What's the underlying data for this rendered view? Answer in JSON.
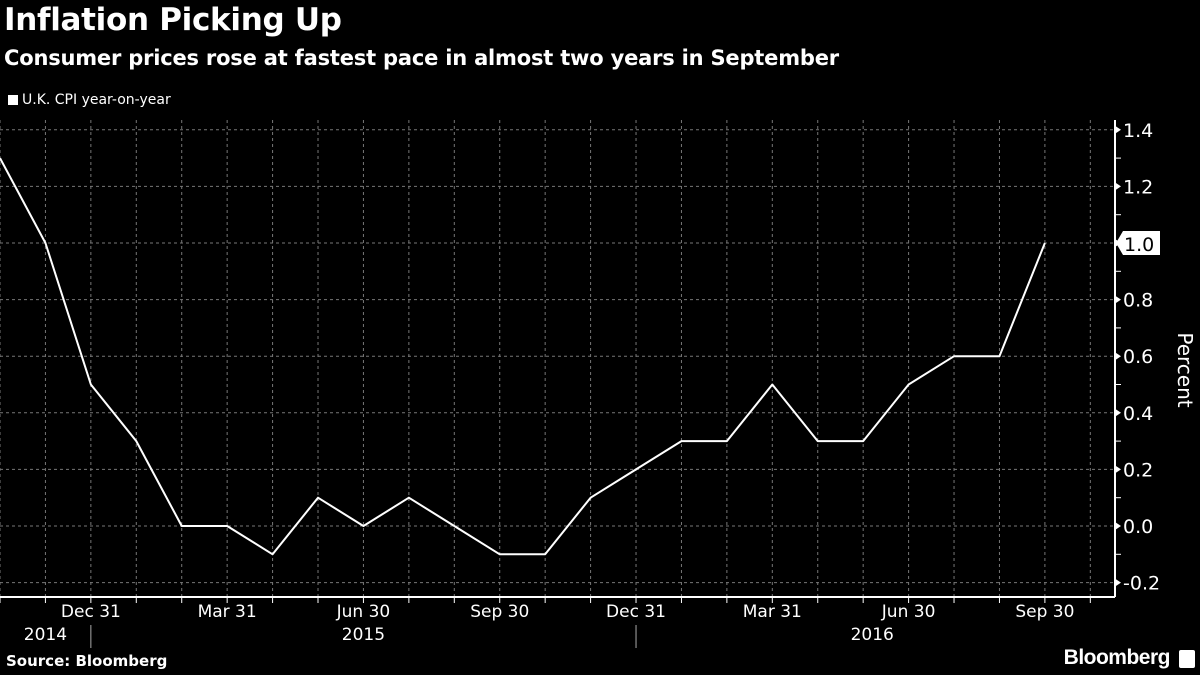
{
  "chart_data": {
    "type": "line",
    "title": "Inflation Picking Up",
    "subtitle": "Consumer prices rose at fastest pace in almost two years in September",
    "xlabel": "",
    "ylabel": "Percent",
    "ylim": [
      -0.25,
      1.45
    ],
    "yticks": [
      "1.4",
      "1.2",
      "1.0",
      "0.8",
      "0.6",
      "0.4",
      "0.2",
      "0.0",
      "-0.2"
    ],
    "ytick_values": [
      1.4,
      1.2,
      1.0,
      0.8,
      0.6,
      0.4,
      0.2,
      0.0,
      -0.2
    ],
    "last_value_label": "1.0",
    "grid": true,
    "legend_position": "top-left",
    "series": [
      {
        "name": "U.K. CPI year-on-year",
        "x": [
          "2014-10",
          "2014-11",
          "2014-12",
          "2015-01",
          "2015-02",
          "2015-03",
          "2015-04",
          "2015-05",
          "2015-06",
          "2015-07",
          "2015-08",
          "2015-09",
          "2015-10",
          "2015-11",
          "2015-12",
          "2016-01",
          "2016-02",
          "2016-03",
          "2016-04",
          "2016-05",
          "2016-06",
          "2016-07",
          "2016-08",
          "2016-09"
        ],
        "values": [
          1.3,
          1.0,
          0.5,
          0.3,
          0.0,
          0.0,
          -0.1,
          0.1,
          0.0,
          0.1,
          0.0,
          -0.1,
          -0.1,
          0.1,
          0.2,
          0.3,
          0.3,
          0.5,
          0.3,
          0.3,
          0.5,
          0.6,
          0.6,
          1.0
        ]
      }
    ],
    "xtick_labels": [
      {
        "label": "Dec 31",
        "month_index": 2
      },
      {
        "label": "Mar 31",
        "month_index": 5
      },
      {
        "label": "Jun 30",
        "month_index": 8
      },
      {
        "label": "Sep 30",
        "month_index": 11
      },
      {
        "label": "Dec 31",
        "month_index": 14
      },
      {
        "label": "Mar 31",
        "month_index": 17
      },
      {
        "label": "Jun 30",
        "month_index": 20
      },
      {
        "label": "Sep 30",
        "month_index": 23
      }
    ],
    "year_labels": [
      {
        "label": "2014",
        "month_index": 1
      },
      {
        "label": "2015",
        "month_index": 8
      },
      {
        "label": "2016",
        "month_index": 19.2
      }
    ],
    "year_separators": [
      2,
      14
    ]
  },
  "footer": {
    "source": "Source: Bloomberg",
    "brand": "Bloomberg"
  }
}
